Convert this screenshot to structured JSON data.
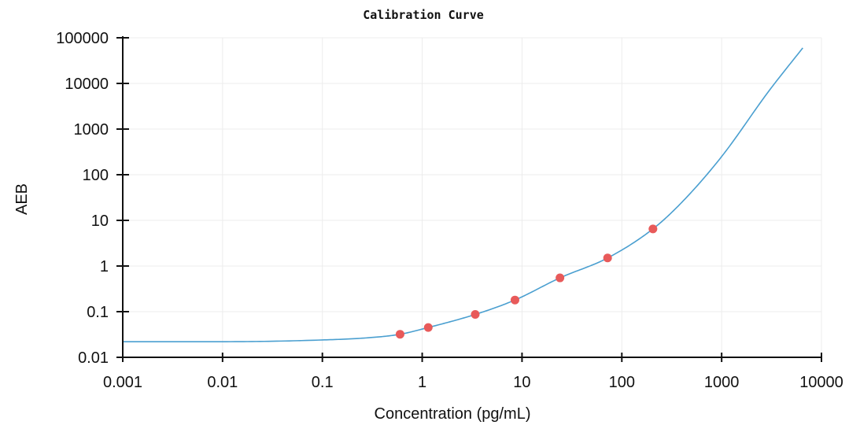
{
  "chart_data": {
    "type": "scatter",
    "title": "Calibration Curve",
    "xlabel": "Concentration (pg/mL)",
    "ylabel": "AEB",
    "x_scale": "log",
    "y_scale": "log",
    "xlim": [
      0.001,
      10000
    ],
    "ylim": [
      0.01,
      100000
    ],
    "x_ticks": [
      "0.001",
      "0.01",
      "0.1",
      "1",
      "10",
      "100",
      "1000",
      "10000"
    ],
    "y_ticks": [
      "0.01",
      "0.1",
      "1",
      "10",
      "100",
      "1000",
      "10000",
      "100000"
    ],
    "grid": true,
    "colors": {
      "points": "#e85a5a",
      "curve": "#4a9fd0"
    },
    "series": [
      {
        "type": "scatter",
        "x": [
          0.6,
          1.15,
          3.4,
          8.5,
          24,
          72,
          205
        ],
        "y": [
          0.032,
          0.045,
          0.087,
          0.18,
          0.55,
          1.5,
          6.5
        ]
      },
      {
        "type": "line",
        "x": [
          0.001,
          0.01,
          0.1,
          0.3,
          0.6,
          1.15,
          3.4,
          8.5,
          24,
          72,
          205,
          400,
          1000,
          3000,
          6500
        ],
        "y": [
          0.022,
          0.022,
          0.024,
          0.027,
          0.032,
          0.045,
          0.087,
          0.18,
          0.55,
          1.5,
          6.5,
          25,
          250,
          7000,
          60000
        ]
      }
    ]
  }
}
